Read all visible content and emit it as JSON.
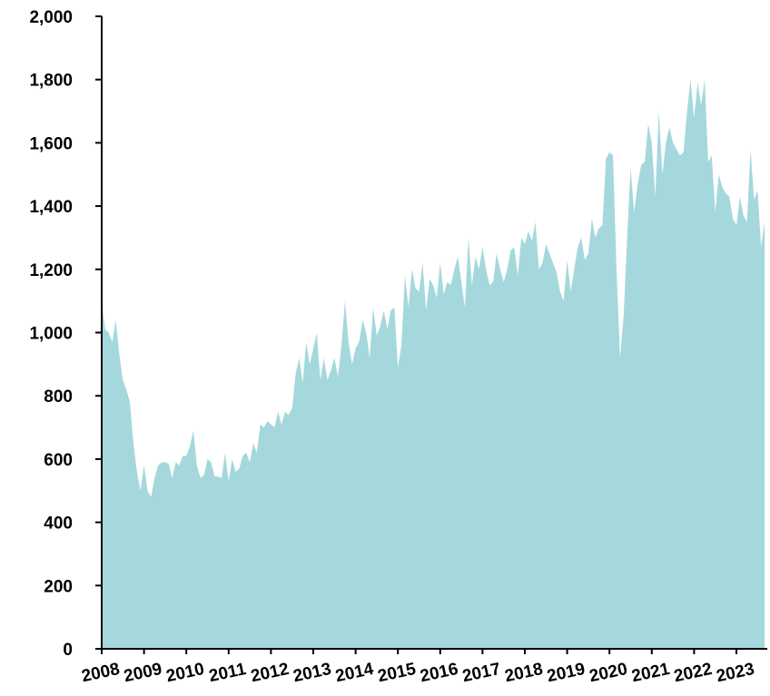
{
  "chart_data": {
    "type": "area",
    "color": "#a5d8dc",
    "categories": [
      "2008",
      null,
      null,
      null,
      null,
      null,
      null,
      null,
      null,
      null,
      null,
      null,
      "2009",
      null,
      null,
      null,
      null,
      null,
      null,
      null,
      null,
      null,
      null,
      null,
      "2010",
      null,
      null,
      null,
      null,
      null,
      null,
      null,
      null,
      null,
      null,
      null,
      "2011",
      null,
      null,
      null,
      null,
      null,
      null,
      null,
      null,
      null,
      null,
      null,
      "2012",
      null,
      null,
      null,
      null,
      null,
      null,
      null,
      null,
      null,
      null,
      null,
      "2013",
      null,
      null,
      null,
      null,
      null,
      null,
      null,
      null,
      null,
      null,
      null,
      "2014",
      null,
      null,
      null,
      null,
      null,
      null,
      null,
      null,
      null,
      null,
      null,
      "2015",
      null,
      null,
      null,
      null,
      null,
      null,
      null,
      null,
      null,
      null,
      null,
      "2016",
      null,
      null,
      null,
      null,
      null,
      null,
      null,
      null,
      null,
      null,
      null,
      "2017",
      null,
      null,
      null,
      null,
      null,
      null,
      null,
      null,
      null,
      null,
      null,
      "2018",
      null,
      null,
      null,
      null,
      null,
      null,
      null,
      null,
      null,
      null,
      null,
      "2019",
      null,
      null,
      null,
      null,
      null,
      null,
      null,
      null,
      null,
      null,
      null,
      "2020",
      null,
      null,
      null,
      null,
      null,
      null,
      null,
      null,
      null,
      null,
      null,
      "2021",
      null,
      null,
      null,
      null,
      null,
      null,
      null,
      null,
      null,
      null,
      null,
      "2022",
      null,
      null,
      null,
      null,
      null,
      null,
      null,
      null,
      null,
      null,
      null,
      "2023",
      null,
      null,
      null,
      null,
      null,
      null,
      null,
      null
    ],
    "values": [
      1100,
      1010,
      1000,
      970,
      1040,
      930,
      850,
      820,
      780,
      650,
      560,
      500,
      580,
      500,
      480,
      540,
      580,
      590,
      590,
      585,
      540,
      590,
      580,
      610,
      610,
      640,
      690,
      580,
      540,
      550,
      600,
      590,
      545,
      545,
      540,
      620,
      530,
      600,
      560,
      570,
      610,
      620,
      590,
      650,
      620,
      710,
      700,
      720,
      710,
      700,
      750,
      710,
      750,
      740,
      760,
      870,
      920,
      840,
      970,
      900,
      950,
      1000,
      850,
      920,
      850,
      880,
      920,
      860,
      960,
      1100,
      970,
      900,
      950,
      970,
      1040,
      1000,
      920,
      1080,
      990,
      1020,
      1070,
      1010,
      1070,
      1080,
      890,
      960,
      1180,
      1080,
      1200,
      1140,
      1130,
      1220,
      1070,
      1170,
      1150,
      1110,
      1220,
      1120,
      1160,
      1150,
      1200,
      1240,
      1160,
      1080,
      1300,
      1150,
      1240,
      1200,
      1270,
      1200,
      1150,
      1160,
      1250,
      1200,
      1160,
      1200,
      1260,
      1270,
      1180,
      1300,
      1280,
      1320,
      1290,
      1350,
      1200,
      1220,
      1280,
      1250,
      1220,
      1190,
      1130,
      1100,
      1230,
      1130,
      1200,
      1270,
      1300,
      1230,
      1250,
      1360,
      1300,
      1330,
      1340,
      1550,
      1570,
      1560,
      1200,
      920,
      1050,
      1300,
      1520,
      1380,
      1470,
      1530,
      1540,
      1660,
      1600,
      1430,
      1700,
      1500,
      1600,
      1650,
      1600,
      1580,
      1560,
      1570,
      1700,
      1800,
      1680,
      1790,
      1720,
      1800,
      1540,
      1560,
      1380,
      1500,
      1460,
      1440,
      1430,
      1360,
      1340,
      1430,
      1370,
      1350,
      1580,
      1420,
      1450,
      1270,
      1350
    ],
    "ylim": [
      0,
      2000
    ],
    "yticks": [
      0,
      200,
      400,
      600,
      800,
      {
        "value": 1000,
        "label": "1,000"
      },
      {
        "value": 1200,
        "label": "1,200"
      },
      {
        "value": 1400,
        "label": "1,400"
      },
      {
        "value": 1600,
        "label": "1,600"
      },
      {
        "value": 1800,
        "label": "1,800"
      },
      {
        "value": 2000,
        "label": "2,000"
      }
    ]
  }
}
